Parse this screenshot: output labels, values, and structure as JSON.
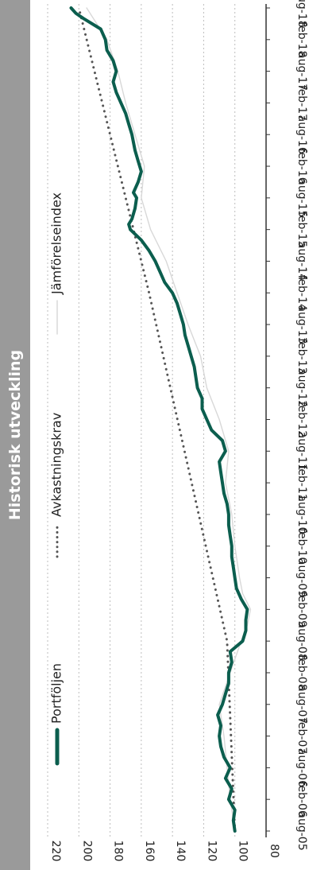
{
  "chart_data": {
    "type": "line",
    "title": "Historisk utveckling",
    "orientation": "rotated-90-clockwise",
    "x_ticks": [
      "aug-05",
      "feb-06",
      "aug-06",
      "feb-07",
      "aug-07",
      "feb-08",
      "aug-08",
      "feb-09",
      "aug-09",
      "feb-10",
      "aug-10",
      "feb-11",
      "aug-11",
      "feb-12",
      "aug-12",
      "feb-13",
      "aug-13",
      "feb-14",
      "aug-14",
      "feb-15",
      "aug-15",
      "feb-16",
      "aug-16",
      "feb-17",
      "aug-17",
      "feb-18",
      "aug-18"
    ],
    "y_ticks": [
      "220",
      "200",
      "180",
      "160",
      "140",
      "120",
      "100",
      "80"
    ],
    "ylim": [
      80,
      220
    ],
    "grid": true,
    "legend_position": "top",
    "series": [
      {
        "name": "Portföljen",
        "color": "#0b5e4e",
        "style": "solid",
        "points": [
          [
            "aug-05",
            100
          ],
          [
            "oct-05",
            101
          ],
          [
            "dec-05",
            100
          ],
          [
            "feb-06",
            104
          ],
          [
            "apr-06",
            102
          ],
          [
            "jun-06",
            106
          ],
          [
            "aug-06",
            103
          ],
          [
            "oct-06",
            107
          ],
          [
            "dec-06",
            109
          ],
          [
            "feb-07",
            110
          ],
          [
            "apr-07",
            109
          ],
          [
            "jun-07",
            111
          ],
          [
            "aug-07",
            108
          ],
          [
            "oct-07",
            106
          ],
          [
            "dec-07",
            104
          ],
          [
            "feb-08",
            104
          ],
          [
            "apr-08",
            102
          ],
          [
            "jun-08",
            103
          ],
          [
            "aug-08",
            95
          ],
          [
            "oct-08",
            93
          ],
          [
            "dec-08",
            93
          ],
          [
            "feb-09",
            92
          ],
          [
            "apr-09",
            96
          ],
          [
            "jun-09",
            99
          ],
          [
            "aug-09",
            100
          ],
          [
            "oct-09",
            101
          ],
          [
            "dec-09",
            102
          ],
          [
            "feb-10",
            102
          ],
          [
            "apr-10",
            103
          ],
          [
            "jun-10",
            104
          ],
          [
            "aug-10",
            104
          ],
          [
            "oct-10",
            105
          ],
          [
            "dec-10",
            107
          ],
          [
            "feb-11",
            108
          ],
          [
            "apr-11",
            109
          ],
          [
            "jun-11",
            110
          ],
          [
            "aug-11",
            106
          ],
          [
            "oct-11",
            108
          ],
          [
            "dec-11",
            115
          ],
          [
            "feb-12",
            118
          ],
          [
            "apr-12",
            121
          ],
          [
            "jun-12",
            121
          ],
          [
            "aug-12",
            124
          ],
          [
            "oct-12",
            125
          ],
          [
            "dec-12",
            126
          ],
          [
            "feb-13",
            128
          ],
          [
            "apr-13",
            130
          ],
          [
            "jun-13",
            132
          ],
          [
            "aug-13",
            133
          ],
          [
            "oct-13",
            135
          ],
          [
            "dec-13",
            137
          ],
          [
            "feb-14",
            140
          ],
          [
            "apr-14",
            145
          ],
          [
            "jun-14",
            148
          ],
          [
            "aug-14",
            151
          ],
          [
            "oct-14",
            155
          ],
          [
            "dec-14",
            160
          ],
          [
            "feb-15",
            167
          ],
          [
            "mar-15",
            168
          ],
          [
            "apr-15",
            166
          ],
          [
            "jun-15",
            164
          ],
          [
            "aug-15",
            163
          ],
          [
            "sep-15",
            165
          ],
          [
            "nov-15",
            162
          ],
          [
            "jan-16",
            160
          ],
          [
            "mar-16",
            162
          ],
          [
            "may-16",
            164
          ],
          [
            "aug-16",
            166
          ],
          [
            "oct-16",
            168
          ],
          [
            "dec-16",
            170
          ],
          [
            "feb-17",
            173
          ],
          [
            "apr-17",
            176
          ],
          [
            "jun-17",
            178
          ],
          [
            "aug-17",
            176
          ],
          [
            "oct-17",
            178
          ],
          [
            "dec-17",
            182
          ],
          [
            "feb-18",
            183
          ],
          [
            "apr-18",
            186
          ],
          [
            "jun-18",
            197
          ],
          [
            "jul-18",
            202
          ],
          [
            "aug-18",
            205
          ]
        ]
      },
      {
        "name": "Avkastningskrav",
        "color": "#555555",
        "style": "dotted",
        "points": [
          [
            "aug-05",
            100
          ],
          [
            "aug-08",
            105
          ],
          [
            "feb-14",
            155
          ],
          [
            "aug-18",
            200
          ]
        ]
      },
      {
        "name": "Jämförelseindex",
        "color": "#d8d8d8",
        "style": "solid",
        "points": [
          [
            "aug-05",
            100
          ],
          [
            "feb-06",
            103
          ],
          [
            "aug-06",
            105
          ],
          [
            "feb-07",
            107
          ],
          [
            "aug-07",
            110
          ],
          [
            "feb-08",
            103
          ],
          [
            "aug-08",
            96
          ],
          [
            "nov-08",
            92
          ],
          [
            "feb-09",
            90
          ],
          [
            "may-09",
            95
          ],
          [
            "aug-09",
            97
          ],
          [
            "feb-10",
            100
          ],
          [
            "aug-10",
            102
          ],
          [
            "feb-11",
            106
          ],
          [
            "aug-11",
            104
          ],
          [
            "feb-12",
            110
          ],
          [
            "aug-12",
            118
          ],
          [
            "feb-13",
            122
          ],
          [
            "aug-13",
            130
          ],
          [
            "feb-14",
            137
          ],
          [
            "aug-14",
            144
          ],
          [
            "feb-15",
            154
          ],
          [
            "aug-15",
            160
          ],
          [
            "feb-16",
            158
          ],
          [
            "aug-16",
            164
          ],
          [
            "feb-17",
            170
          ],
          [
            "aug-17",
            175
          ],
          [
            "feb-18",
            182
          ],
          [
            "aug-18",
            195
          ]
        ]
      }
    ]
  }
}
